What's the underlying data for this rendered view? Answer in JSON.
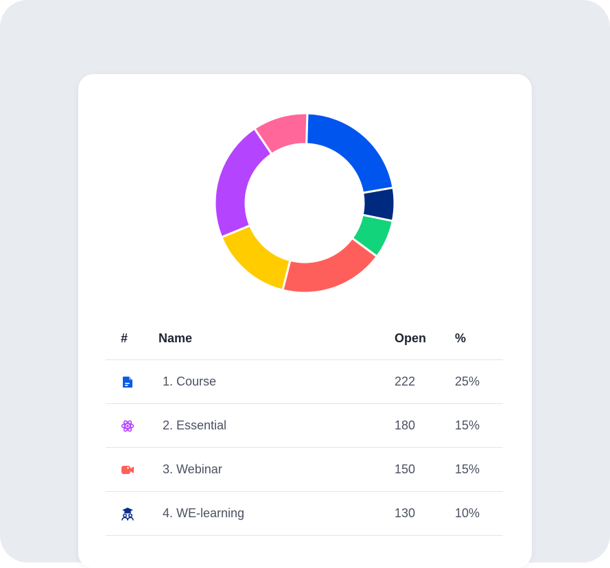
{
  "chart_data": {
    "type": "pie",
    "style": "donut",
    "slices": [
      {
        "color": "#0055ee",
        "value": 22
      },
      {
        "color": "#002a80",
        "value": 6
      },
      {
        "color": "#12d47a",
        "value": 7
      },
      {
        "color": "#ff5f5a",
        "value": 19
      },
      {
        "color": "#ffcc00",
        "value": 15
      },
      {
        "color": "#b544ff",
        "value": 22
      },
      {
        "color": "#ff6699",
        "value": 10
      }
    ]
  },
  "table": {
    "headers": {
      "index": "#",
      "name": "Name",
      "open": "Open",
      "percent": "%"
    },
    "rows": [
      {
        "icon": "document-icon",
        "icon_color": "#0a5ce6",
        "name": "1. Course",
        "open": "222",
        "percent": "25%"
      },
      {
        "icon": "atom-icon",
        "icon_color": "#b544ff",
        "name": "2. Essential",
        "open": "180",
        "percent": "15%"
      },
      {
        "icon": "video-camera-icon",
        "icon_color": "#ff5f5a",
        "name": "3. Webinar",
        "open": "150",
        "percent": "15%"
      },
      {
        "icon": "graduates-icon",
        "icon_color": "#0b2d8c",
        "name": "4. WE-learning",
        "open": "130",
        "percent": "10%"
      }
    ]
  }
}
